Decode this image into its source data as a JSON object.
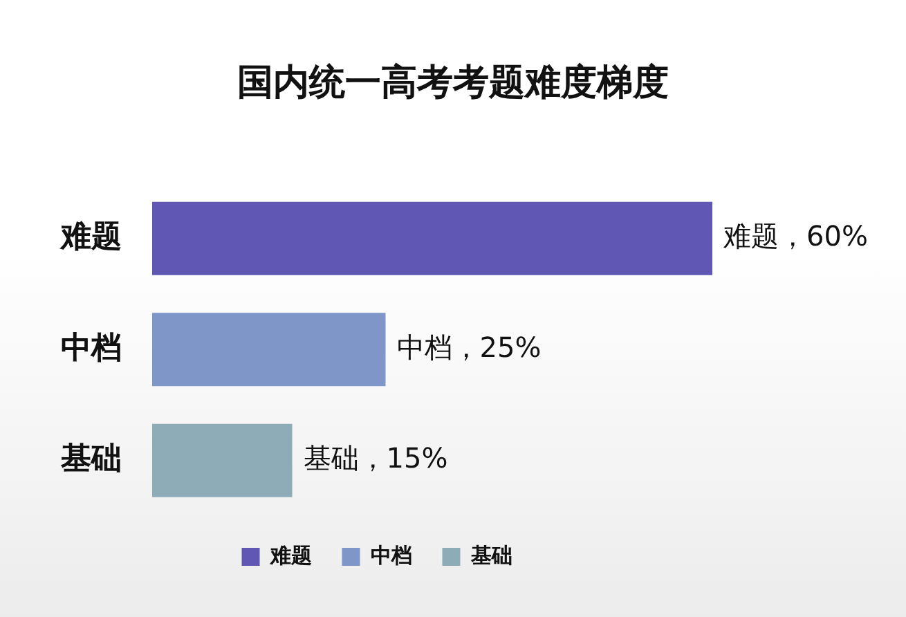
{
  "chart_data": {
    "type": "bar",
    "orientation": "horizontal",
    "title": "国内统一高考考题难度梯度",
    "categories": [
      "难题",
      "中档",
      "基础"
    ],
    "series": [
      {
        "name": "难题",
        "color": "#5f57b3",
        "values": [
          60,
          null,
          null
        ],
        "value_labels": [
          "难题，60%",
          null,
          null
        ]
      },
      {
        "name": "中档",
        "color": "#7f97c8",
        "values": [
          null,
          25,
          null
        ],
        "value_labels": [
          null,
          "中档，25%",
          null
        ]
      },
      {
        "name": "基础",
        "color": "#8eabb8",
        "values": [
          null,
          null,
          15
        ],
        "value_labels": [
          null,
          null,
          "基础，15%"
        ]
      }
    ],
    "legend": "bottom"
  }
}
